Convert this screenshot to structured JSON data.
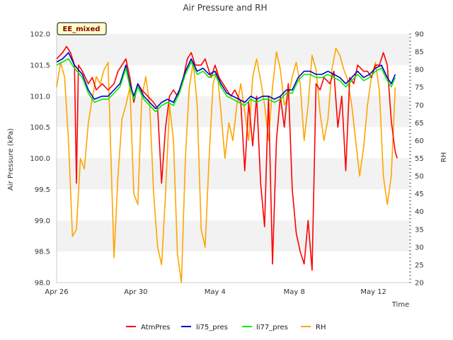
{
  "chart_data": {
    "type": "line",
    "title": "Air Pressure and RH",
    "badge": "EE_mixed",
    "xlabel": "Time",
    "ylabel": "Air Pressure (kPa)",
    "y2label": "RH",
    "x_ticks": [
      "Apr 26",
      "Apr 30",
      "May 4",
      "May 8",
      "May 12"
    ],
    "x_tick_days": [
      0,
      4,
      8,
      12,
      16
    ],
    "xlim_days": [
      0,
      17.8
    ],
    "ylim": [
      98.0,
      102.0
    ],
    "y_ticks": [
      "102.0",
      "101.5",
      "101.0",
      "100.5",
      "100.0",
      "99.5",
      "99.0",
      "98.5",
      "98.0"
    ],
    "y_tick_values": [
      102.0,
      101.5,
      101.0,
      100.5,
      100.0,
      99.5,
      99.0,
      98.5,
      98.0
    ],
    "y2lim": [
      20,
      90
    ],
    "y2_ticks": [
      "90",
      "85",
      "80",
      "75",
      "70",
      "65",
      "60",
      "55",
      "50",
      "45",
      "40",
      "35",
      "30",
      "25",
      "20"
    ],
    "y2_tick_values": [
      90,
      85,
      80,
      75,
      70,
      65,
      60,
      55,
      50,
      45,
      40,
      35,
      30,
      25,
      20
    ],
    "grid": "horizontal bands",
    "legend_position": "bottom",
    "colors": {
      "AtmPres": "#ff0000",
      "li75_pres": "#0000cc",
      "li77_pres": "#00ee00",
      "RH": "#ffa500"
    },
    "series": [
      {
        "name": "AtmPres",
        "axis": "left",
        "color": "#ff0000",
        "points": [
          [
            0.0,
            101.6
          ],
          [
            0.3,
            101.7
          ],
          [
            0.5,
            101.8
          ],
          [
            0.7,
            101.7
          ],
          [
            0.9,
            101.5
          ],
          [
            1.0,
            99.6
          ],
          [
            1.1,
            101.5
          ],
          [
            1.3,
            101.4
          ],
          [
            1.6,
            101.2
          ],
          [
            1.8,
            101.3
          ],
          [
            2.0,
            101.1
          ],
          [
            2.3,
            101.2
          ],
          [
            2.6,
            101.1
          ],
          [
            2.9,
            101.2
          ],
          [
            3.1,
            101.4
          ],
          [
            3.3,
            101.5
          ],
          [
            3.5,
            101.6
          ],
          [
            3.7,
            101.3
          ],
          [
            3.9,
            100.9
          ],
          [
            4.1,
            101.2
          ],
          [
            4.3,
            101.1
          ],
          [
            4.6,
            101.0
          ],
          [
            4.9,
            100.9
          ],
          [
            5.1,
            100.8
          ],
          [
            5.3,
            99.6
          ],
          [
            5.5,
            100.5
          ],
          [
            5.7,
            101.0
          ],
          [
            5.9,
            101.1
          ],
          [
            6.1,
            101.0
          ],
          [
            6.4,
            101.3
          ],
          [
            6.6,
            101.6
          ],
          [
            6.8,
            101.7
          ],
          [
            7.0,
            101.5
          ],
          [
            7.3,
            101.5
          ],
          [
            7.5,
            101.6
          ],
          [
            7.8,
            101.3
          ],
          [
            8.0,
            101.5
          ],
          [
            8.2,
            101.3
          ],
          [
            8.4,
            101.2
          ],
          [
            8.6,
            101.1
          ],
          [
            8.8,
            101.0
          ],
          [
            9.0,
            101.1
          ],
          [
            9.3,
            100.9
          ],
          [
            9.5,
            99.8
          ],
          [
            9.7,
            100.9
          ],
          [
            9.9,
            100.2
          ],
          [
            10.1,
            101.0
          ],
          [
            10.3,
            99.6
          ],
          [
            10.5,
            98.9
          ],
          [
            10.6,
            100.0
          ],
          [
            10.7,
            101.0
          ],
          [
            10.9,
            98.3
          ],
          [
            11.1,
            100.3
          ],
          [
            11.3,
            101.0
          ],
          [
            11.5,
            100.5
          ],
          [
            11.7,
            101.2
          ],
          [
            11.9,
            99.5
          ],
          [
            12.1,
            98.8
          ],
          [
            12.3,
            98.5
          ],
          [
            12.5,
            98.3
          ],
          [
            12.7,
            99.0
          ],
          [
            12.9,
            98.2
          ],
          [
            13.1,
            101.2
          ],
          [
            13.3,
            101.1
          ],
          [
            13.5,
            101.3
          ],
          [
            13.8,
            101.2
          ],
          [
            14.0,
            101.4
          ],
          [
            14.2,
            100.5
          ],
          [
            14.4,
            101.0
          ],
          [
            14.6,
            99.8
          ],
          [
            14.8,
            101.3
          ],
          [
            15.0,
            101.2
          ],
          [
            15.2,
            101.5
          ],
          [
            15.5,
            101.4
          ],
          [
            15.7,
            101.4
          ],
          [
            15.9,
            101.3
          ],
          [
            16.1,
            101.5
          ],
          [
            16.3,
            101.5
          ],
          [
            16.5,
            101.7
          ],
          [
            16.7,
            101.5
          ],
          [
            16.9,
            100.6
          ],
          [
            17.1,
            100.1
          ],
          [
            17.2,
            100.0
          ]
        ]
      },
      {
        "name": "li75_pres",
        "axis": "left",
        "color": "#0000cc",
        "points": [
          [
            0.0,
            101.55
          ],
          [
            0.3,
            101.6
          ],
          [
            0.6,
            101.7
          ],
          [
            0.9,
            101.5
          ],
          [
            1.3,
            101.35
          ],
          [
            1.6,
            101.1
          ],
          [
            1.9,
            100.95
          ],
          [
            2.3,
            101.0
          ],
          [
            2.6,
            101.0
          ],
          [
            2.9,
            101.1
          ],
          [
            3.2,
            101.2
          ],
          [
            3.5,
            101.5
          ],
          [
            3.7,
            101.2
          ],
          [
            3.9,
            101.0
          ],
          [
            4.1,
            101.2
          ],
          [
            4.4,
            101.0
          ],
          [
            4.7,
            100.9
          ],
          [
            5.0,
            100.8
          ],
          [
            5.3,
            100.9
          ],
          [
            5.6,
            100.95
          ],
          [
            5.9,
            100.9
          ],
          [
            6.2,
            101.1
          ],
          [
            6.5,
            101.4
          ],
          [
            6.8,
            101.6
          ],
          [
            7.1,
            101.4
          ],
          [
            7.4,
            101.45
          ],
          [
            7.7,
            101.35
          ],
          [
            8.0,
            101.4
          ],
          [
            8.3,
            101.2
          ],
          [
            8.6,
            101.05
          ],
          [
            8.9,
            101.0
          ],
          [
            9.2,
            100.95
          ],
          [
            9.5,
            100.9
          ],
          [
            9.8,
            101.0
          ],
          [
            10.1,
            100.95
          ],
          [
            10.4,
            101.0
          ],
          [
            10.7,
            101.0
          ],
          [
            11.0,
            100.95
          ],
          [
            11.3,
            101.0
          ],
          [
            11.6,
            101.1
          ],
          [
            11.9,
            101.1
          ],
          [
            12.2,
            101.3
          ],
          [
            12.5,
            101.4
          ],
          [
            12.8,
            101.4
          ],
          [
            13.1,
            101.35
          ],
          [
            13.4,
            101.35
          ],
          [
            13.7,
            101.4
          ],
          [
            14.0,
            101.35
          ],
          [
            14.3,
            101.3
          ],
          [
            14.6,
            101.2
          ],
          [
            14.9,
            101.3
          ],
          [
            15.2,
            101.4
          ],
          [
            15.5,
            101.3
          ],
          [
            15.8,
            101.35
          ],
          [
            16.1,
            101.45
          ],
          [
            16.4,
            101.5
          ],
          [
            16.7,
            101.3
          ],
          [
            16.9,
            101.2
          ],
          [
            17.1,
            101.35
          ]
        ]
      },
      {
        "name": "li77_pres",
        "axis": "left",
        "color": "#00ee00",
        "points": [
          [
            0.0,
            101.5
          ],
          [
            0.3,
            101.55
          ],
          [
            0.6,
            101.6
          ],
          [
            0.9,
            101.45
          ],
          [
            1.3,
            101.3
          ],
          [
            1.6,
            101.05
          ],
          [
            1.9,
            100.9
          ],
          [
            2.3,
            100.95
          ],
          [
            2.6,
            100.95
          ],
          [
            2.9,
            101.05
          ],
          [
            3.2,
            101.15
          ],
          [
            3.5,
            101.45
          ],
          [
            3.7,
            101.15
          ],
          [
            3.9,
            100.95
          ],
          [
            4.1,
            101.15
          ],
          [
            4.4,
            100.95
          ],
          [
            4.7,
            100.85
          ],
          [
            5.0,
            100.75
          ],
          [
            5.3,
            100.85
          ],
          [
            5.6,
            100.9
          ],
          [
            5.9,
            100.85
          ],
          [
            6.2,
            101.05
          ],
          [
            6.5,
            101.35
          ],
          [
            6.8,
            101.55
          ],
          [
            7.1,
            101.35
          ],
          [
            7.4,
            101.4
          ],
          [
            7.7,
            101.3
          ],
          [
            8.0,
            101.35
          ],
          [
            8.3,
            101.15
          ],
          [
            8.6,
            101.0
          ],
          [
            8.9,
            100.95
          ],
          [
            9.2,
            100.9
          ],
          [
            9.5,
            100.85
          ],
          [
            9.8,
            100.95
          ],
          [
            10.1,
            100.9
          ],
          [
            10.4,
            100.95
          ],
          [
            10.7,
            100.95
          ],
          [
            11.0,
            100.9
          ],
          [
            11.3,
            100.95
          ],
          [
            11.6,
            101.05
          ],
          [
            11.9,
            101.05
          ],
          [
            12.2,
            101.25
          ],
          [
            12.5,
            101.35
          ],
          [
            12.8,
            101.35
          ],
          [
            13.1,
            101.3
          ],
          [
            13.4,
            101.3
          ],
          [
            13.7,
            101.35
          ],
          [
            14.0,
            101.3
          ],
          [
            14.3,
            101.25
          ],
          [
            14.6,
            101.15
          ],
          [
            14.9,
            101.25
          ],
          [
            15.2,
            101.35
          ],
          [
            15.5,
            101.25
          ],
          [
            15.8,
            101.3
          ],
          [
            16.1,
            101.4
          ],
          [
            16.4,
            101.45
          ],
          [
            16.7,
            101.25
          ],
          [
            16.9,
            101.15
          ],
          [
            17.1,
            101.3
          ]
        ]
      },
      {
        "name": "RH",
        "axis": "right",
        "color": "#ffa500",
        "points": [
          [
            0.0,
            75
          ],
          [
            0.2,
            82
          ],
          [
            0.4,
            78
          ],
          [
            0.6,
            60
          ],
          [
            0.8,
            33
          ],
          [
            1.0,
            35
          ],
          [
            1.2,
            55
          ],
          [
            1.4,
            52
          ],
          [
            1.6,
            65
          ],
          [
            1.8,
            72
          ],
          [
            2.0,
            78
          ],
          [
            2.2,
            76
          ],
          [
            2.4,
            80
          ],
          [
            2.6,
            82
          ],
          [
            2.8,
            45
          ],
          [
            2.9,
            27
          ],
          [
            3.1,
            50
          ],
          [
            3.3,
            66
          ],
          [
            3.5,
            70
          ],
          [
            3.7,
            75
          ],
          [
            3.9,
            45
          ],
          [
            4.1,
            42
          ],
          [
            4.3,
            72
          ],
          [
            4.5,
            78
          ],
          [
            4.7,
            70
          ],
          [
            4.9,
            45
          ],
          [
            5.1,
            30
          ],
          [
            5.3,
            25
          ],
          [
            5.5,
            45
          ],
          [
            5.7,
            70
          ],
          [
            5.9,
            60
          ],
          [
            6.1,
            28
          ],
          [
            6.3,
            20
          ],
          [
            6.5,
            55
          ],
          [
            6.7,
            75
          ],
          [
            6.9,
            82
          ],
          [
            7.1,
            70
          ],
          [
            7.3,
            35
          ],
          [
            7.5,
            30
          ],
          [
            7.7,
            55
          ],
          [
            7.9,
            76
          ],
          [
            8.1,
            80
          ],
          [
            8.3,
            68
          ],
          [
            8.5,
            55
          ],
          [
            8.7,
            65
          ],
          [
            8.9,
            60
          ],
          [
            9.1,
            70
          ],
          [
            9.3,
            76
          ],
          [
            9.5,
            68
          ],
          [
            9.7,
            60
          ],
          [
            9.9,
            78
          ],
          [
            10.1,
            83
          ],
          [
            10.3,
            77
          ],
          [
            10.5,
            70
          ],
          [
            10.7,
            60
          ],
          [
            10.9,
            75
          ],
          [
            11.1,
            85
          ],
          [
            11.3,
            80
          ],
          [
            11.5,
            70
          ],
          [
            11.7,
            72
          ],
          [
            11.9,
            78
          ],
          [
            12.1,
            82
          ],
          [
            12.3,
            76
          ],
          [
            12.5,
            60
          ],
          [
            12.7,
            70
          ],
          [
            12.9,
            84
          ],
          [
            13.1,
            80
          ],
          [
            13.3,
            68
          ],
          [
            13.5,
            60
          ],
          [
            13.7,
            66
          ],
          [
            13.9,
            80
          ],
          [
            14.1,
            86
          ],
          [
            14.3,
            84
          ],
          [
            14.5,
            80
          ],
          [
            14.7,
            77
          ],
          [
            14.9,
            70
          ],
          [
            15.1,
            60
          ],
          [
            15.3,
            50
          ],
          [
            15.5,
            58
          ],
          [
            15.7,
            70
          ],
          [
            15.9,
            78
          ],
          [
            16.1,
            82
          ],
          [
            16.3,
            74
          ],
          [
            16.5,
            50
          ],
          [
            16.7,
            42
          ],
          [
            16.9,
            50
          ],
          [
            17.1,
            75
          ]
        ]
      }
    ]
  },
  "legend": {
    "items": [
      {
        "label": "AtmPres",
        "color": "#ff0000"
      },
      {
        "label": "li75_pres",
        "color": "#0000cc"
      },
      {
        "label": "li77_pres",
        "color": "#00ee00"
      },
      {
        "label": "RH",
        "color": "#ffa500"
      }
    ]
  }
}
